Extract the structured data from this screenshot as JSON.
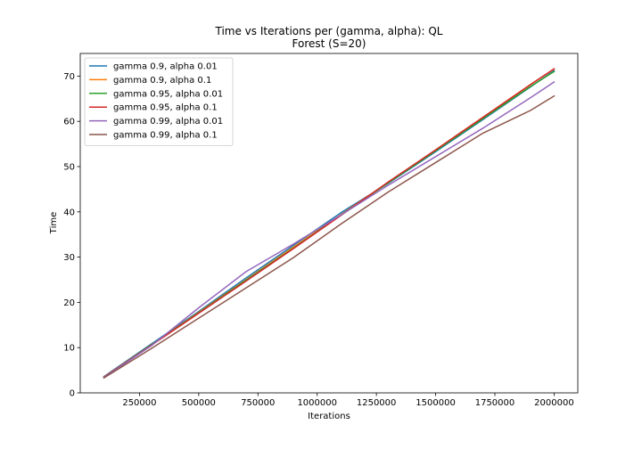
{
  "chart_data": {
    "type": "line",
    "title": "Time vs Iterations per (gamma, alpha): QL",
    "subtitle": "Forest (S=20)",
    "xlabel": "Iterations",
    "ylabel": "Time",
    "xlim": [
      0,
      2100000
    ],
    "ylim": [
      0,
      75
    ],
    "xticks": [
      250000,
      500000,
      750000,
      1000000,
      1250000,
      1500000,
      1750000,
      2000000
    ],
    "xtick_labels": [
      "250000",
      "500000",
      "750000",
      "1000000",
      "1250000",
      "1500000",
      "1750000",
      "2000000"
    ],
    "yticks": [
      0,
      10,
      20,
      30,
      40,
      50,
      60,
      70
    ],
    "ytick_labels": [
      "0",
      "10",
      "20",
      "30",
      "40",
      "50",
      "60",
      "70"
    ],
    "grid": false,
    "legend_position": "top-left",
    "x": [
      100000,
      300000,
      500000,
      700000,
      900000,
      1100000,
      1300000,
      1500000,
      1700000,
      1900000,
      2000000
    ],
    "series": [
      {
        "name": "gamma 0.9, alpha 0.01",
        "color": "#1f77b4",
        "values": [
          3.6,
          10.8,
          18.0,
          25.4,
          32.6,
          39.8,
          46.3,
          53.3,
          60.4,
          67.6,
          71.2
        ]
      },
      {
        "name": "gamma 0.9, alpha 0.1",
        "color": "#ff7f0e",
        "values": [
          3.5,
          10.6,
          17.8,
          25.0,
          32.2,
          39.4,
          46.5,
          53.7,
          60.9,
          68.1,
          71.6
        ]
      },
      {
        "name": "gamma 0.95, alpha 0.01",
        "color": "#2ca02c",
        "values": [
          3.5,
          10.6,
          17.7,
          24.9,
          32.0,
          39.3,
          46.4,
          53.5,
          60.6,
          67.7,
          71.0
        ]
      },
      {
        "name": "gamma 0.95, alpha 0.1",
        "color": "#d62728",
        "values": [
          3.5,
          10.5,
          17.6,
          24.7,
          31.9,
          39.2,
          46.6,
          53.7,
          60.9,
          68.1,
          71.6
        ]
      },
      {
        "name": "gamma 0.99, alpha 0.01",
        "color": "#9467bd",
        "values": [
          3.4,
          10.4,
          18.8,
          26.8,
          32.9,
          39.3,
          45.9,
          52.2,
          58.5,
          65.2,
          68.7
        ]
      },
      {
        "name": "gamma 0.99, alpha 0.1",
        "color": "#8c564b",
        "values": [
          3.3,
          9.8,
          16.5,
          23.2,
          29.9,
          37.3,
          44.4,
          50.9,
          57.4,
          62.4,
          65.6
        ]
      }
    ]
  }
}
